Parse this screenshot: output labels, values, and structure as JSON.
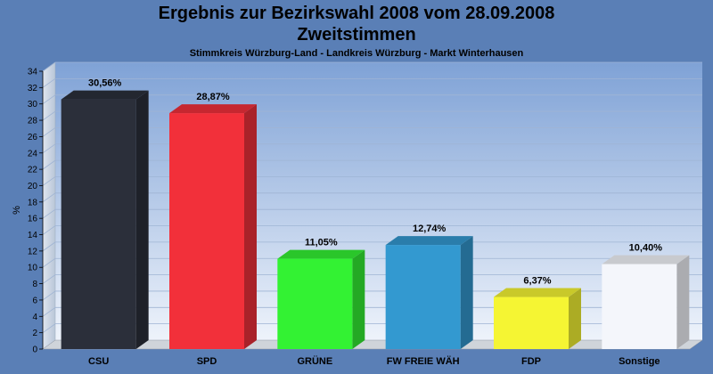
{
  "chart_data": {
    "type": "bar",
    "title": "Ergebnis zur Bezirkswahl 2008 vom 28.09.2008",
    "subtitle": "Zweitstimmen",
    "subsubtitle": "Stimmkreis Würzburg-Land - Landkreis Würzburg - Markt Winterhausen",
    "ylabel": "%",
    "xlabel": "",
    "ylim": [
      0,
      34
    ],
    "yticks": [
      "0",
      "2",
      "4",
      "6",
      "8",
      "10",
      "12",
      "14",
      "16",
      "18",
      "20",
      "22",
      "24",
      "26",
      "28",
      "30",
      "32",
      "34"
    ],
    "grid": true,
    "categories": [
      "CSU",
      "SPD",
      "GRÜNE",
      "FW FREIE WÄH",
      "FDP",
      "Sonstige"
    ],
    "values": [
      30.56,
      28.87,
      11.05,
      12.74,
      6.37,
      10.4
    ],
    "data_labels": [
      "30,56%",
      "28,87%",
      "11,05%",
      "12,74%",
      "6,37%",
      "10,40%"
    ],
    "colors": [
      "#2b2f3a",
      "#f2303a",
      "#33f233",
      "#3399d0",
      "#f5f533",
      "#f4f6fb"
    ]
  }
}
